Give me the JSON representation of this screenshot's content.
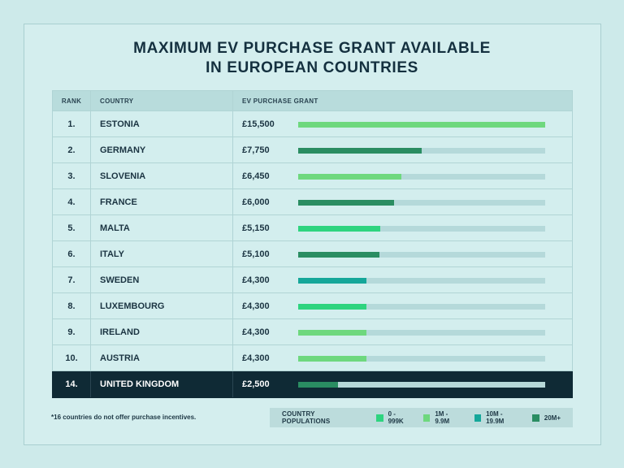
{
  "title_lines": [
    "MAXIMUM EV PURCHASE GRANT AVAILABLE",
    "IN EUROPEAN COUNTRIES"
  ],
  "headers": {
    "rank": "RANK",
    "country": "COUNTRY",
    "grant": "EV PURCHASE GRANT"
  },
  "colors": {
    "pop_0_999k": "#2ed47f",
    "pop_1m_9_9m": "#6ed87e",
    "pop_10m_19_9m": "#15a79a",
    "pop_20m_plus": "#2a8d62"
  },
  "chart_data": {
    "type": "bar",
    "max_value": 15500,
    "rows": [
      {
        "rank": "1.",
        "country": "ESTONIA",
        "grant": "£15,500",
        "value": 15500,
        "population_group": "pop_1m_9_9m"
      },
      {
        "rank": "2.",
        "country": "GERMANY",
        "grant": "£7,750",
        "value": 7750,
        "population_group": "pop_20m_plus"
      },
      {
        "rank": "3.",
        "country": "SLOVENIA",
        "grant": "£6,450",
        "value": 6450,
        "population_group": "pop_1m_9_9m"
      },
      {
        "rank": "4.",
        "country": "FRANCE",
        "grant": "£6,000",
        "value": 6000,
        "population_group": "pop_20m_plus"
      },
      {
        "rank": "5.",
        "country": "MALTA",
        "grant": "£5,150",
        "value": 5150,
        "population_group": "pop_0_999k"
      },
      {
        "rank": "6.",
        "country": "ITALY",
        "grant": "£5,100",
        "value": 5100,
        "population_group": "pop_20m_plus"
      },
      {
        "rank": "7.",
        "country": "SWEDEN",
        "grant": "£4,300",
        "value": 4300,
        "population_group": "pop_10m_19_9m"
      },
      {
        "rank": "8.",
        "country": "LUXEMBOURG",
        "grant": "£4,300",
        "value": 4300,
        "population_group": "pop_0_999k"
      },
      {
        "rank": "9.",
        "country": "IRELAND",
        "grant": "£4,300",
        "value": 4300,
        "population_group": "pop_1m_9_9m"
      },
      {
        "rank": "10.",
        "country": "AUSTRIA",
        "grant": "£4,300",
        "value": 4300,
        "population_group": "pop_1m_9_9m"
      },
      {
        "rank": "14.",
        "country": "UNITED KINGDOM",
        "grant": "£2,500",
        "value": 2500,
        "population_group": "pop_20m_plus",
        "highlight": true
      }
    ]
  },
  "footnote": "*16 countries do not offer purchase incentives.",
  "legend": {
    "title": "COUNTRY POPULATIONS",
    "items": [
      {
        "label": "0 - 999K",
        "group": "pop_0_999k"
      },
      {
        "label": "1M - 9.9M",
        "group": "pop_1m_9_9m"
      },
      {
        "label": "10M - 19.9M",
        "group": "pop_10m_19_9m"
      },
      {
        "label": "20M+",
        "group": "pop_20m_plus"
      }
    ]
  }
}
